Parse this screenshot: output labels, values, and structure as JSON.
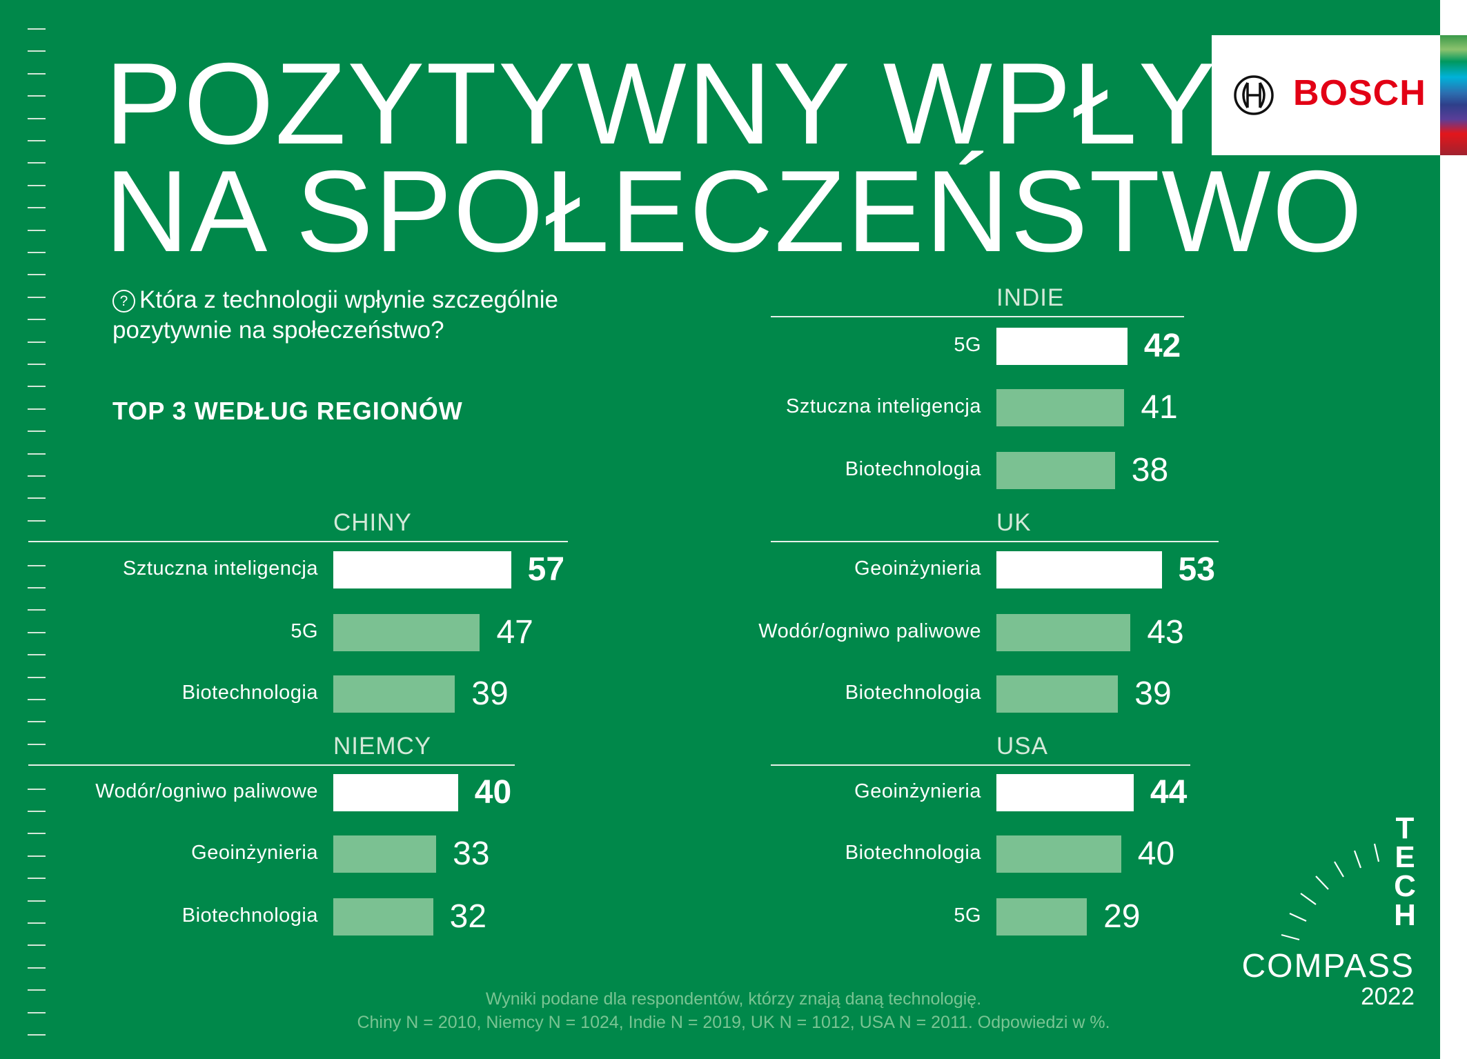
{
  "header": {
    "title_line1": "POZYTYWNY WPŁYW",
    "title_line2": "NA SPOŁECZEŃSTWO"
  },
  "question": {
    "icon": "question-circle-icon",
    "icon_glyph": "?",
    "line1": "Która z technologii wpłynie szczególnie",
    "line2": "pozytywnie na społeczeństwo?"
  },
  "subtitle": "TOP 3 WEDŁUG REGIONÓW",
  "logo": {
    "brand": "BOSCH",
    "color": "#e20015"
  },
  "tech_compass": {
    "t": "T",
    "e": "E",
    "c": "C",
    "h": "H",
    "compass": "COMPASS",
    "year": "2022"
  },
  "footer": {
    "line1": "Wyniki podane dla respondentów, którzy znają daną technologię.",
    "line2": "Chiny N = 2010, Niemcy N = 1024, Indie N = 2019, UK N = 1012, USA N = 2011. Odpowiedzi w %."
  },
  "colors": {
    "background": "#00884a",
    "top_bar": "#ffffff",
    "other_bars": "#7bc192",
    "footer_text": "#79c493"
  },
  "chart_data": {
    "type": "bar",
    "orientation": "horizontal",
    "unit": "%",
    "panels": [
      {
        "region": "INDIE",
        "categories": [
          "5G",
          "Sztuczna inteligencja",
          "Biotechnologia"
        ],
        "values": [
          42,
          41,
          38
        ]
      },
      {
        "region": "CHINY",
        "categories": [
          "Sztuczna inteligencja",
          "5G",
          "Biotechnologia"
        ],
        "values": [
          57,
          47,
          39
        ]
      },
      {
        "region": "UK",
        "categories": [
          "Geoinżynieria",
          "Wodór/ogniwo paliwowe",
          "Biotechnologia"
        ],
        "values": [
          53,
          43,
          39
        ]
      },
      {
        "region": "NIEMCY",
        "categories": [
          "Wodór/ogniwo paliwowe",
          "Geoinżynieria",
          "Biotechnologia"
        ],
        "values": [
          40,
          33,
          32
        ]
      },
      {
        "region": "USA",
        "categories": [
          "Geoinżynieria",
          "Biotechnologia",
          "5G"
        ],
        "values": [
          44,
          40,
          29
        ]
      }
    ]
  }
}
